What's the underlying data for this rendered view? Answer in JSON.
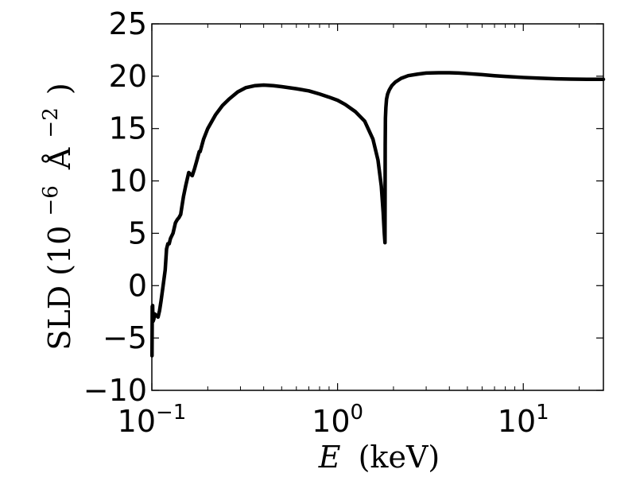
{
  "chart_data": {
    "type": "line",
    "title": "",
    "xlabel": "E (keV)",
    "xlabel_parts": {
      "var": "E",
      "unit": "(keV)"
    },
    "ylabel": "SLD (10^-6 Å^-2)",
    "ylabel_parts": {
      "main": "SLD (10",
      "exp1": "−6",
      "mid": "Å",
      "exp2": "−2",
      "close": ")"
    },
    "x_scale": "log",
    "xlim": [
      0.1,
      27
    ],
    "ylim": [
      -10,
      25
    ],
    "grid": false,
    "legend": "none",
    "x_ticks": [
      {
        "value": 0.1,
        "base": "10",
        "exp": "−1"
      },
      {
        "value": 1,
        "base": "10",
        "exp": "0"
      },
      {
        "value": 10,
        "base": "10",
        "exp": "1"
      }
    ],
    "y_ticks": [
      {
        "value": -10,
        "label": "−10"
      },
      {
        "value": -5,
        "label": "−5"
      },
      {
        "value": 0,
        "label": "0"
      },
      {
        "value": 5,
        "label": "5"
      },
      {
        "value": 10,
        "label": "10"
      },
      {
        "value": 15,
        "label": "15"
      },
      {
        "value": 20,
        "label": "20"
      },
      {
        "value": 25,
        "label": "25"
      }
    ],
    "series": [
      {
        "color": "#000000",
        "x": [
          0.1002,
          0.1005,
          0.101,
          0.1013,
          0.1016,
          0.1025,
          0.1035,
          0.105,
          0.108,
          0.11,
          0.112,
          0.115,
          0.118,
          0.12,
          0.122,
          0.124,
          0.126,
          0.13,
          0.134,
          0.137,
          0.14,
          0.143,
          0.145,
          0.148,
          0.152,
          0.158,
          0.165,
          0.17,
          0.175,
          0.18,
          0.182,
          0.19,
          0.2,
          0.22,
          0.24,
          0.26,
          0.29,
          0.32,
          0.36,
          0.4,
          0.45,
          0.5,
          0.55,
          0.6,
          0.7,
          0.8,
          0.9,
          1.0,
          1.1,
          1.25,
          1.4,
          1.55,
          1.65,
          1.72,
          1.76,
          1.785,
          1.8,
          1.805,
          1.81,
          1.82,
          1.835,
          1.86,
          1.9,
          1.96,
          2.05,
          2.2,
          2.4,
          2.7,
          3.0,
          3.5,
          4.0,
          4.5,
          5.0,
          6.0,
          7.0,
          8.0,
          10.0,
          12.0,
          15.0,
          18.0,
          22.0,
          27.0
        ],
        "y": [
          -6.7,
          -2.0,
          -1.9,
          -3.0,
          -3.4,
          -3.2,
          -2.7,
          -2.8,
          -3.0,
          -2.4,
          -1.5,
          0.0,
          1.5,
          3.5,
          4.0,
          4.0,
          4.5,
          5.0,
          6.0,
          6.3,
          6.5,
          6.8,
          7.5,
          8.5,
          9.5,
          10.8,
          10.5,
          11.2,
          12.0,
          12.8,
          12.8,
          14.0,
          15.0,
          16.3,
          17.2,
          17.8,
          18.5,
          18.9,
          19.1,
          19.15,
          19.1,
          19.0,
          18.9,
          18.8,
          18.6,
          18.3,
          18.0,
          17.7,
          17.3,
          16.6,
          15.7,
          14.0,
          12.0,
          9.5,
          7.0,
          5.0,
          4.1,
          13.5,
          16.0,
          17.0,
          17.8,
          18.3,
          18.7,
          19.1,
          19.45,
          19.8,
          20.05,
          20.2,
          20.3,
          20.33,
          20.33,
          20.3,
          20.25,
          20.15,
          20.05,
          19.98,
          19.88,
          19.82,
          19.75,
          19.72,
          19.7,
          19.7
        ]
      }
    ]
  }
}
